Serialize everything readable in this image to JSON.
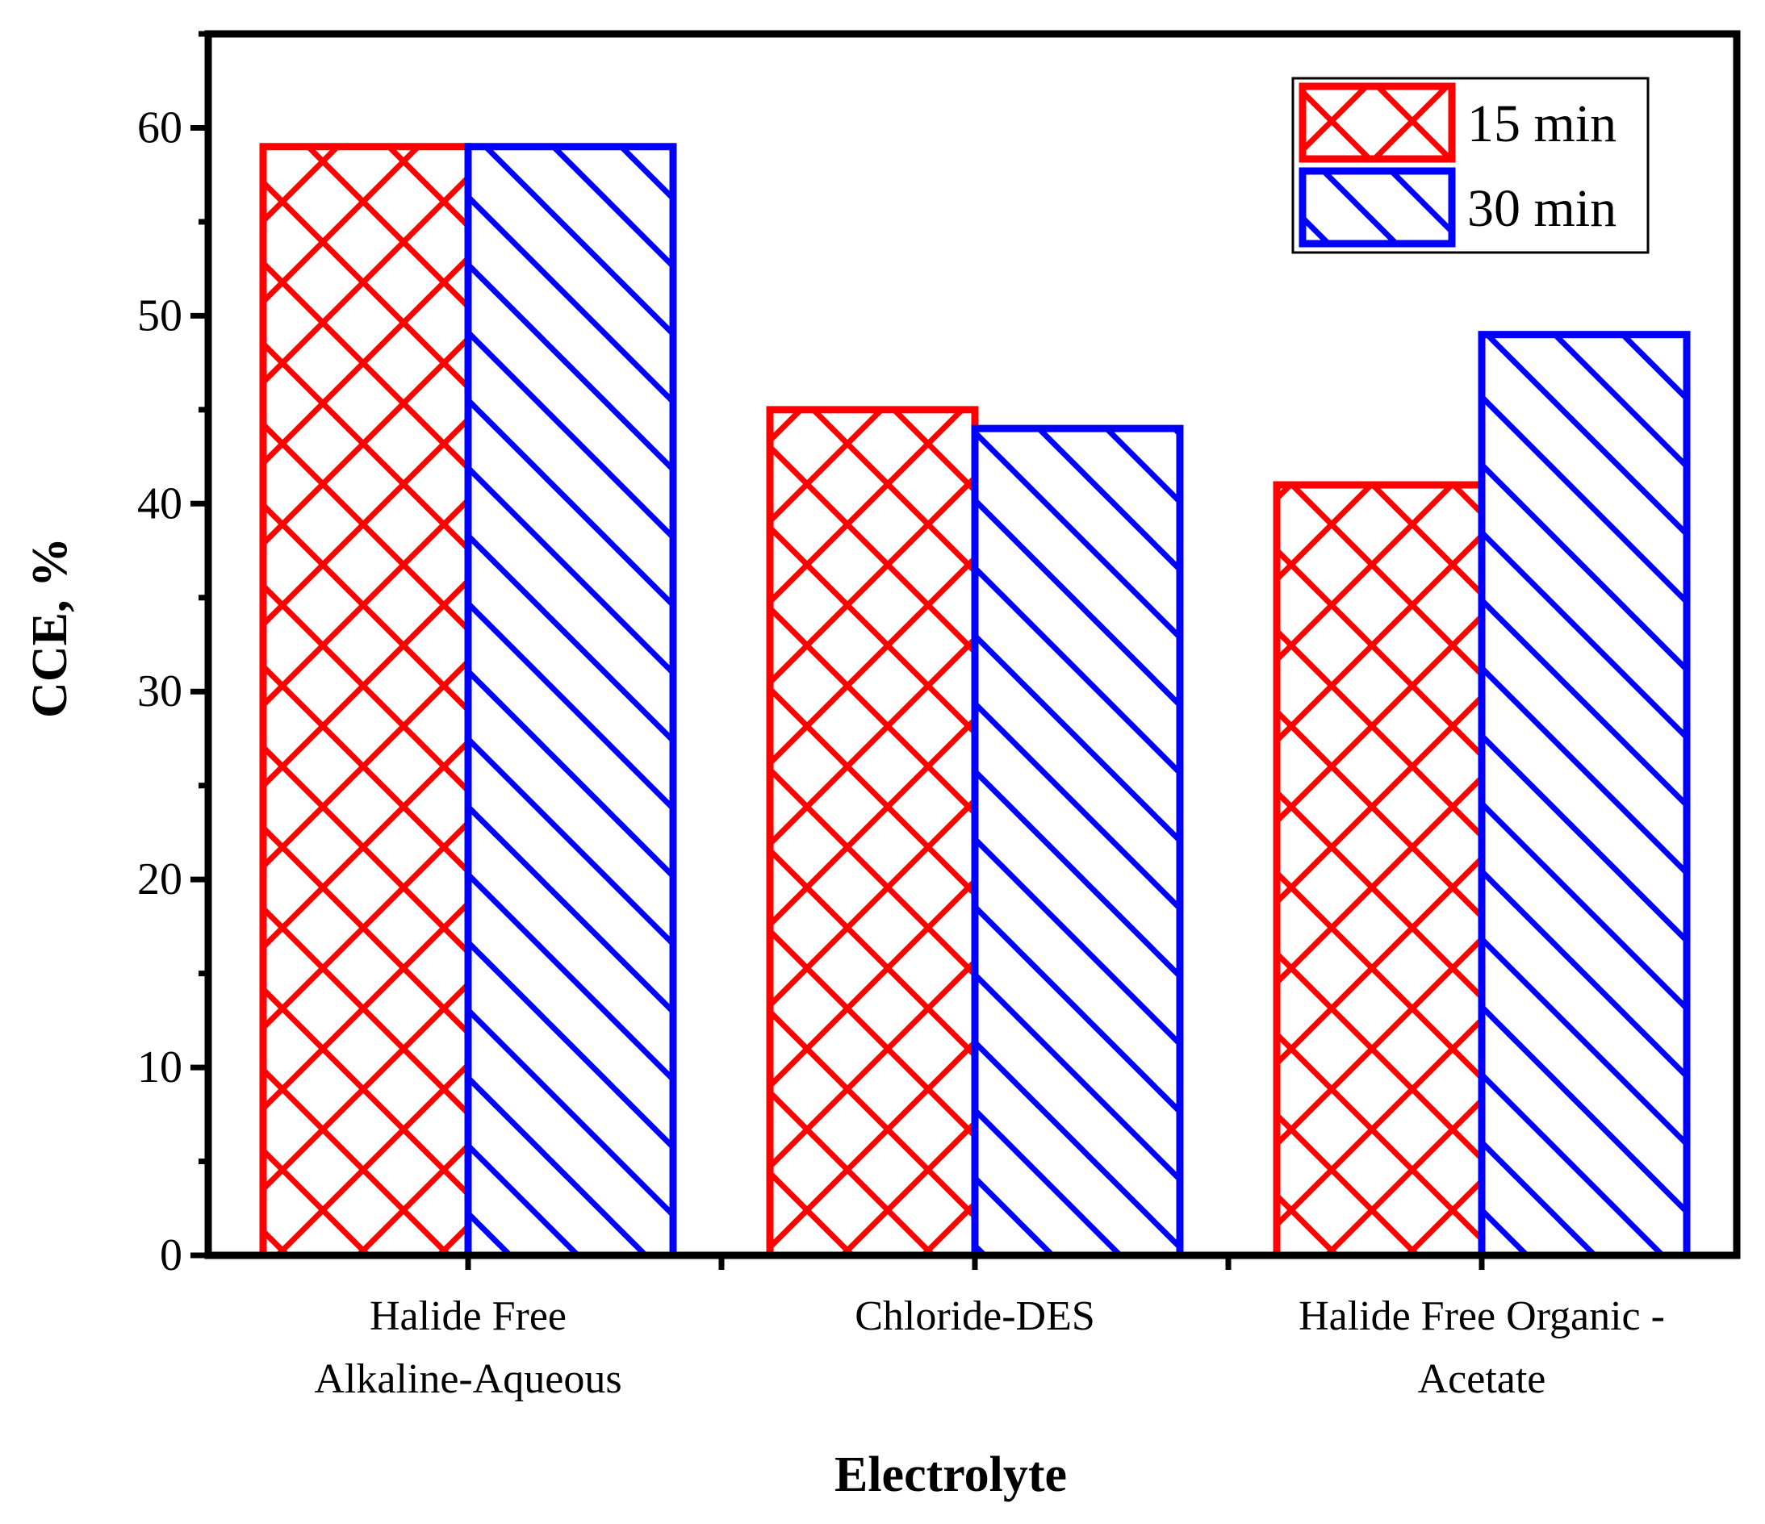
{
  "chart_data": {
    "type": "bar",
    "title": "",
    "xlabel": "Electrolyte",
    "ylabel": "CCE, %",
    "ylim": [
      0,
      65
    ],
    "yticks": [
      0,
      10,
      20,
      30,
      40,
      50,
      60
    ],
    "grid": false,
    "legend_position": "top-right",
    "categories": [
      [
        "Halide Free",
        "Alkaline-Aqueous"
      ],
      [
        "Chloride-DES"
      ],
      [
        "Halide Free Organic -",
        "Acetate"
      ]
    ],
    "series": [
      {
        "name": "15 min",
        "color": "#ff0000",
        "pattern": "crosshatch",
        "values": [
          59,
          45,
          41
        ]
      },
      {
        "name": "30 min",
        "color": "#0000ff",
        "pattern": "diagonal",
        "values": [
          59,
          44,
          49
        ]
      }
    ]
  }
}
